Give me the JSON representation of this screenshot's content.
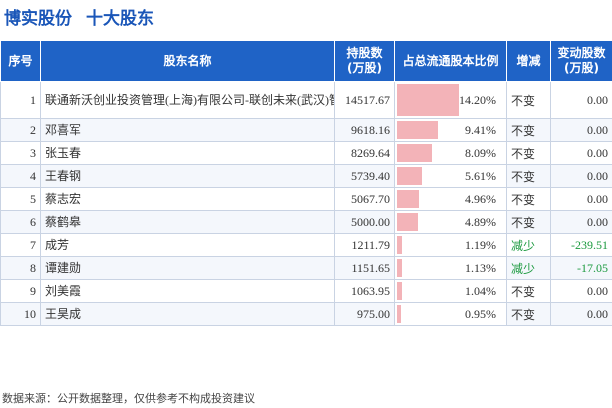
{
  "header": {
    "company": "博实股份",
    "subtitle": "十大股东"
  },
  "columns": {
    "rank": "序号",
    "name": "股东名称",
    "shares_line1": "持股数",
    "shares_line2": "(万股)",
    "ratio": "占总流通股本比例",
    "change": "增减",
    "delta_line1": "变动股数",
    "delta_line2": "(万股)"
  },
  "rows": [
    {
      "rank": "1",
      "name": "联通新沃创业投资管理(上海)有限公司-联创未来(武汉)智能制造产业投资合伙企业(有限合伙)",
      "shares": "14517.67",
      "ratio": "14.20%",
      "ratio_value": 14.2,
      "change": "不变",
      "delta": "0.00"
    },
    {
      "rank": "2",
      "name": "邓喜军",
      "shares": "9618.16",
      "ratio": "9.41%",
      "ratio_value": 9.41,
      "change": "不变",
      "delta": "0.00"
    },
    {
      "rank": "3",
      "name": "张玉春",
      "shares": "8269.64",
      "ratio": "8.09%",
      "ratio_value": 8.09,
      "change": "不变",
      "delta": "0.00"
    },
    {
      "rank": "4",
      "name": "王春钢",
      "shares": "5739.40",
      "ratio": "5.61%",
      "ratio_value": 5.61,
      "change": "不变",
      "delta": "0.00"
    },
    {
      "rank": "5",
      "name": "蔡志宏",
      "shares": "5067.70",
      "ratio": "4.96%",
      "ratio_value": 4.96,
      "change": "不变",
      "delta": "0.00"
    },
    {
      "rank": "6",
      "name": "蔡鹤皋",
      "shares": "5000.00",
      "ratio": "4.89%",
      "ratio_value": 4.89,
      "change": "不变",
      "delta": "0.00"
    },
    {
      "rank": "7",
      "name": "成芳",
      "shares": "1211.79",
      "ratio": "1.19%",
      "ratio_value": 1.19,
      "change": "减少",
      "delta": "-239.51"
    },
    {
      "rank": "8",
      "name": "谭建勋",
      "shares": "1151.65",
      "ratio": "1.13%",
      "ratio_value": 1.13,
      "change": "减少",
      "delta": "-17.05"
    },
    {
      "rank": "9",
      "name": "刘美霞",
      "shares": "1063.95",
      "ratio": "1.04%",
      "ratio_value": 1.04,
      "change": "不变",
      "delta": "0.00"
    },
    {
      "rank": "10",
      "name": "王昊成",
      "shares": "975.00",
      "ratio": "0.95%",
      "ratio_value": 0.95,
      "change": "不变",
      "delta": "0.00"
    }
  ],
  "footer": {
    "source": "数据来源：公开数据整理，仅供参考不构成投资建议"
  },
  "colors": {
    "header_bg": "#1f63c6",
    "title": "#1a56b8",
    "bar": "#f3b3b8",
    "decrease": "#1c9a3f"
  }
}
